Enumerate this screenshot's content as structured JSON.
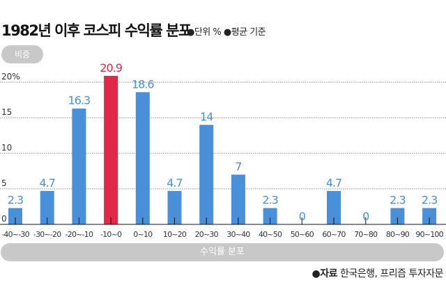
{
  "title": "1982년 이후 코스피 수익률 분포",
  "subtitle": "●단위 % ●평균 기준",
  "source_label": "●자료",
  "source": "한국은행, 프리즘 투자자문",
  "chart_data": {
    "type": "bar",
    "title": "1982년 이후 코스피 수익률 분포",
    "ylabel": "비중",
    "xlabel": "수익률 분포",
    "ylim": [
      0,
      20
    ],
    "yticks": [
      "0",
      "5",
      "10",
      "15",
      "20%"
    ],
    "grid": true,
    "categories": [
      "-40~-30",
      "-30~-20",
      "-20~-10",
      "-10~0",
      "0~10",
      "10~20",
      "20~30",
      "30~40",
      "40~50",
      "50~60",
      "60~70",
      "70~80",
      "80~90",
      "90~100"
    ],
    "values": [
      2.3,
      4.7,
      16.3,
      20.9,
      18.6,
      4.7,
      14,
      7,
      2.3,
      0,
      4.7,
      0,
      2.3,
      2.3
    ],
    "data_labels": [
      "2.3",
      "4.7",
      "16.3",
      "20.9",
      "18.6",
      "4.7",
      "14",
      "7",
      "2.3",
      "0",
      "4.7",
      "0",
      "2.3",
      "2.3"
    ],
    "highlight_index": 3,
    "colors": {
      "bar": "#4a90d9",
      "highlight": "#e0284a",
      "label": "#4a90d9",
      "highlight_label": "#e0284a"
    }
  }
}
